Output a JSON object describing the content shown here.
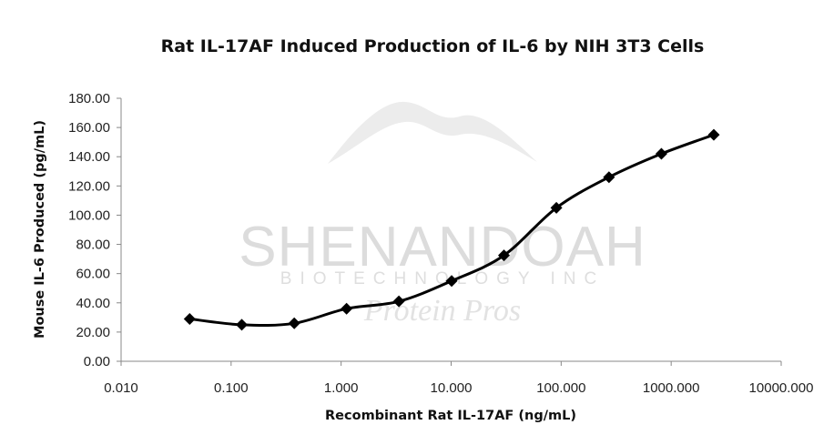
{
  "chart_data": {
    "type": "line",
    "title": "Rat IL-17AF Induced Production of IL-6 by NIH 3T3 Cells",
    "xlabel": "Recombinant Rat IL-17AF (ng/mL)",
    "ylabel": "Mouse IL-6 Produced (pg/mL)",
    "x_scale": "log",
    "xlim": [
      0.01,
      10000
    ],
    "ylim": [
      0,
      180
    ],
    "x_ticks": [
      "0.010",
      "0.100",
      "1.000",
      "10.000",
      "100.000",
      "1000.000",
      "10000.000"
    ],
    "x_tick_values": [
      0.01,
      0.1,
      1,
      10,
      100,
      1000,
      10000
    ],
    "y_ticks": [
      "0.00",
      "20.00",
      "40.00",
      "60.00",
      "80.00",
      "100.00",
      "120.00",
      "140.00",
      "160.00",
      "180.00"
    ],
    "y_tick_values": [
      0,
      20,
      40,
      60,
      80,
      100,
      120,
      140,
      160,
      180
    ],
    "grid": false,
    "legend": "none",
    "series": [
      {
        "marker": "diamond",
        "smooth": true,
        "color": "#000000",
        "x": [
          0.042,
          0.125,
          0.375,
          1.12,
          3.35,
          10.1,
          30.2,
          90.5,
          272,
          815,
          2440
        ],
        "y": [
          29,
          25,
          26,
          36,
          41,
          55,
          72.5,
          105,
          126,
          142,
          155
        ]
      }
    ]
  },
  "watermark": {
    "brand": "SHENANDOAH",
    "sub": "BIOTECHNOLOGY INC",
    "tagline": "Protein Pros",
    "color": "#dcdcdc"
  }
}
